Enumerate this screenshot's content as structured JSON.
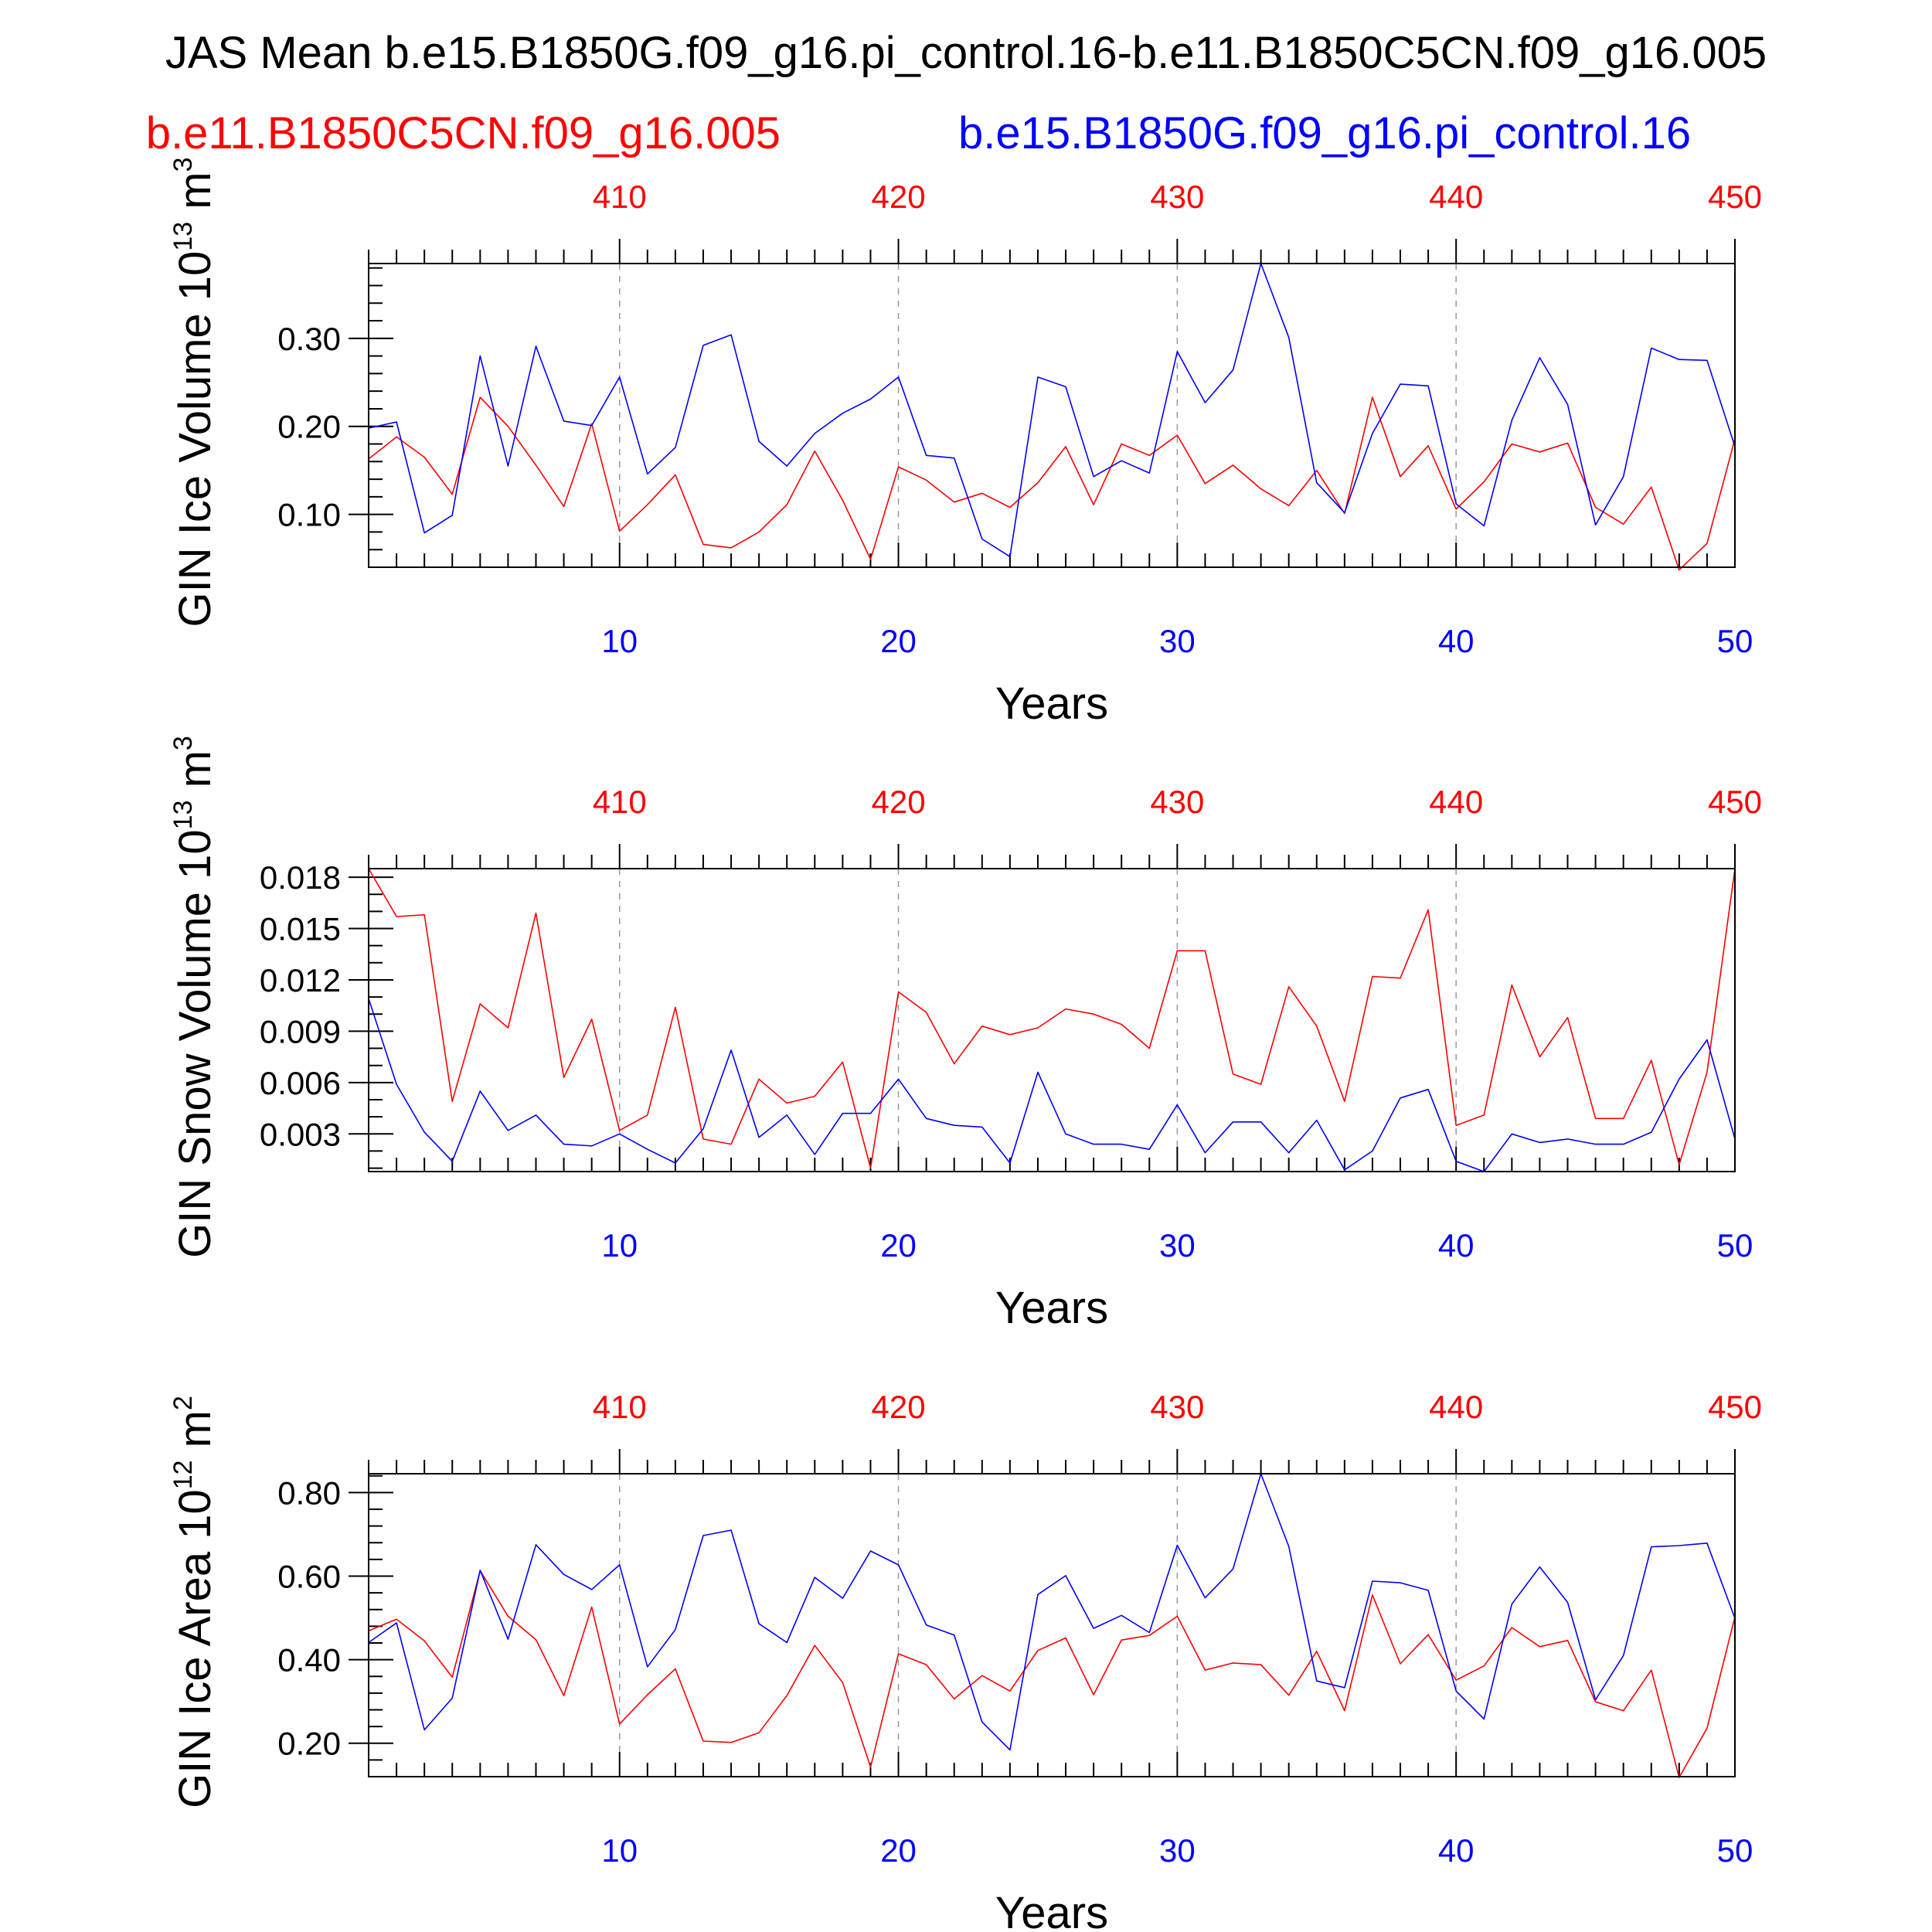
{
  "title": "JAS Mean b.e15.B1850G.f09_g16.pi_control.16-b.e11.B1850C5CN.f09_g16.005",
  "subtitle_left": "b.e11.B1850C5CN.f09_g16.005",
  "subtitle_right": "b.e15.B1850G.f09_g16.pi_control.16",
  "colors": {
    "red": "#ff0000",
    "blue": "#0000ff",
    "grid": "#999999"
  },
  "chart_data": [
    {
      "type": "line",
      "ylabel": "GIN Ice Volume 10",
      "ylabel_exp": "13",
      "ylabel_unit": " m",
      "ylabel_unit_exp": "3",
      "xlabel": "Years",
      "xlim": [
        1,
        50
      ],
      "ylim": [
        0.04,
        0.385
      ],
      "yticks": [
        0.1,
        0.2,
        0.3
      ],
      "ytick_labels": [
        "0.10",
        "0.20",
        "0.30"
      ],
      "yminor": [
        0.04,
        0.06,
        0.08,
        0.12,
        0.14,
        0.16,
        0.18,
        0.22,
        0.24,
        0.26,
        0.28,
        0.32,
        0.34,
        0.36,
        0.38
      ],
      "x_bottom_ticks": [
        10,
        20,
        30,
        40,
        50
      ],
      "x_bottom_labels": [
        "10",
        "20",
        "30",
        "40",
        "50"
      ],
      "x_top_labels": [
        "410",
        "420",
        "430",
        "440",
        "450"
      ],
      "grid_x": [
        10,
        20,
        30,
        40
      ],
      "series": [
        {
          "name": "b.e11.B1850C5CN.f09_g16.005",
          "color": "#ff0000",
          "values": [
            0.163,
            0.188,
            0.165,
            0.123,
            0.233,
            0.2,
            0.156,
            0.109,
            0.203,
            0.081,
            0.111,
            0.145,
            0.066,
            0.062,
            0.08,
            0.111,
            0.172,
            0.116,
            0.049,
            0.154,
            0.139,
            0.114,
            0.124,
            0.108,
            0.136,
            0.177,
            0.111,
            0.18,
            0.167,
            0.19,
            0.135,
            0.156,
            0.129,
            0.11,
            0.15,
            0.101,
            0.233,
            0.143,
            0.178,
            0.106,
            0.137,
            0.18,
            0.171,
            0.181,
            0.108,
            0.089,
            0.131,
            0.037,
            0.067,
            0.186
          ]
        },
        {
          "name": "b.e15.B1850G.f09_g16.pi_control.16",
          "color": "#0000ff",
          "values": [
            0.198,
            0.205,
            0.079,
            0.099,
            0.28,
            0.155,
            0.291,
            0.206,
            0.201,
            0.256,
            0.146,
            0.176,
            0.292,
            0.304,
            0.183,
            0.155,
            0.192,
            0.215,
            0.231,
            0.256,
            0.167,
            0.164,
            0.072,
            0.052,
            0.256,
            0.245,
            0.143,
            0.161,
            0.147,
            0.285,
            0.227,
            0.264,
            0.385,
            0.301,
            0.136,
            0.102,
            0.192,
            0.248,
            0.246,
            0.112,
            0.087,
            0.207,
            0.278,
            0.225,
            0.088,
            0.143,
            0.289,
            0.276,
            0.275,
            0.177
          ]
        }
      ]
    },
    {
      "type": "line",
      "ylabel": "GIN Snow Volume 10",
      "ylabel_exp": "13",
      "ylabel_unit": " m",
      "ylabel_unit_exp": "3",
      "xlabel": "Years",
      "xlim": [
        1,
        50
      ],
      "ylim": [
        0.0008,
        0.0185
      ],
      "yticks": [
        0.003,
        0.006,
        0.009,
        0.012,
        0.015,
        0.018
      ],
      "ytick_labels": [
        "0.003",
        "0.006",
        "0.009",
        "0.012",
        "0.015",
        "0.018"
      ],
      "yminor": [
        0.001,
        0.002,
        0.004,
        0.005,
        0.007,
        0.008,
        0.01,
        0.011,
        0.013,
        0.014,
        0.016,
        0.017
      ],
      "x_bottom_ticks": [
        10,
        20,
        30,
        40,
        50
      ],
      "x_bottom_labels": [
        "10",
        "20",
        "30",
        "40",
        "50"
      ],
      "x_top_labels": [
        "410",
        "420",
        "430",
        "440",
        "450"
      ],
      "grid_x": [
        10,
        20,
        30,
        40
      ],
      "series": [
        {
          "name": "b.e11.B1850C5CN.f09_g16.005",
          "color": "#ff0000",
          "values": [
            0.0185,
            0.0157,
            0.0158,
            0.0049,
            0.0106,
            0.0092,
            0.0159,
            0.0063,
            0.0097,
            0.0032,
            0.0041,
            0.0104,
            0.0027,
            0.0024,
            0.0062,
            0.0048,
            0.0052,
            0.0072,
            0.001,
            0.0113,
            0.0101,
            0.0071,
            0.0093,
            0.0088,
            0.0092,
            0.0103,
            0.01,
            0.0094,
            0.008,
            0.0137,
            0.0137,
            0.0065,
            0.0059,
            0.0116,
            0.0093,
            0.0049,
            0.0122,
            0.0121,
            0.0161,
            0.0035,
            0.0041,
            0.0117,
            0.0075,
            0.0098,
            0.0039,
            0.0039,
            0.0073,
            0.0012,
            0.0066,
            0.0185
          ]
        },
        {
          "name": "b.e15.B1850G.f09_g16.pi_control.16",
          "color": "#0000ff",
          "values": [
            0.0109,
            0.0059,
            0.0031,
            0.0014,
            0.0055,
            0.0032,
            0.0041,
            0.0024,
            0.0023,
            0.003,
            0.0021,
            0.0013,
            0.0033,
            0.0079,
            0.0028,
            0.0041,
            0.0018,
            0.0042,
            0.0042,
            0.0062,
            0.0039,
            0.0035,
            0.0034,
            0.0013,
            0.0066,
            0.003,
            0.0024,
            0.0024,
            0.0021,
            0.0047,
            0.0019,
            0.0037,
            0.0037,
            0.0019,
            0.0038,
            0.0009,
            0.002,
            0.0051,
            0.0056,
            0.0014,
            0.0008,
            0.003,
            0.0025,
            0.0027,
            0.0024,
            0.0024,
            0.0031,
            0.0062,
            0.0085,
            0.0027
          ]
        }
      ]
    },
    {
      "type": "line",
      "ylabel": "GIN Ice Area 10",
      "ylabel_exp": "12",
      "ylabel_unit": " m",
      "ylabel_unit_exp": "2",
      "xlabel": "Years",
      "xlim": [
        1,
        50
      ],
      "ylim": [
        0.12,
        0.845
      ],
      "yticks": [
        0.2,
        0.4,
        0.6,
        0.8
      ],
      "ytick_labels": [
        "0.20",
        "0.40",
        "0.60",
        "0.80"
      ],
      "yminor": [
        0.12,
        0.16,
        0.24,
        0.28,
        0.32,
        0.36,
        0.44,
        0.48,
        0.52,
        0.56,
        0.64,
        0.68,
        0.72,
        0.76,
        0.84
      ],
      "x_bottom_ticks": [
        10,
        20,
        30,
        40,
        50
      ],
      "x_bottom_labels": [
        "10",
        "20",
        "30",
        "40",
        "50"
      ],
      "x_top_labels": [
        "410",
        "420",
        "430",
        "440",
        "450"
      ],
      "grid_x": [
        10,
        20,
        30,
        40
      ],
      "series": [
        {
          "name": "b.e11.B1850C5CN.f09_g16.005",
          "color": "#ff0000",
          "values": [
            0.469,
            0.497,
            0.445,
            0.358,
            0.613,
            0.504,
            0.448,
            0.314,
            0.526,
            0.246,
            0.316,
            0.378,
            0.205,
            0.202,
            0.225,
            0.314,
            0.434,
            0.345,
            0.143,
            0.414,
            0.388,
            0.306,
            0.362,
            0.325,
            0.422,
            0.452,
            0.316,
            0.447,
            0.458,
            0.504,
            0.375,
            0.392,
            0.388,
            0.315,
            0.42,
            0.278,
            0.555,
            0.39,
            0.46,
            0.351,
            0.385,
            0.477,
            0.431,
            0.446,
            0.299,
            0.278,
            0.375,
            0.118,
            0.236,
            0.503
          ]
        },
        {
          "name": "b.e15.B1850G.f09_g16.pi_control.16",
          "color": "#0000ff",
          "values": [
            0.441,
            0.488,
            0.232,
            0.308,
            0.614,
            0.449,
            0.675,
            0.604,
            0.568,
            0.627,
            0.383,
            0.472,
            0.697,
            0.71,
            0.486,
            0.441,
            0.597,
            0.547,
            0.66,
            0.627,
            0.483,
            0.459,
            0.251,
            0.184,
            0.556,
            0.601,
            0.475,
            0.506,
            0.465,
            0.674,
            0.548,
            0.617,
            0.845,
            0.671,
            0.349,
            0.333,
            0.588,
            0.584,
            0.566,
            0.325,
            0.258,
            0.533,
            0.622,
            0.537,
            0.304,
            0.41,
            0.67,
            0.673,
            0.679,
            0.499
          ]
        }
      ]
    }
  ]
}
